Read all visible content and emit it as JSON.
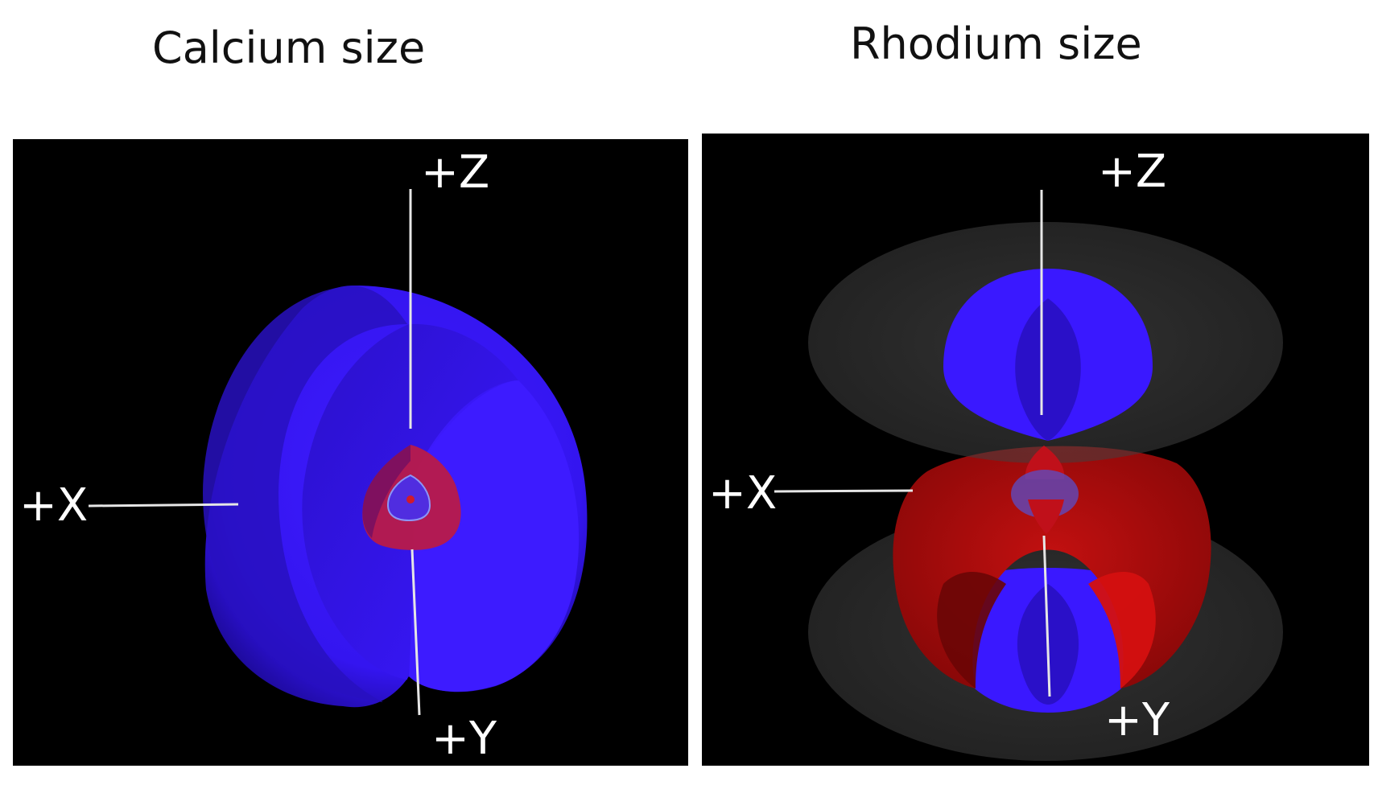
{
  "figure": {
    "left_title": "Calcium size",
    "right_title": "Rhodium size"
  },
  "left_panel": {
    "axes": {
      "z": "+Z",
      "x": "+X",
      "y": "+Y"
    }
  },
  "right_panel": {
    "axes": {
      "z": "+Z",
      "x": "+X",
      "y": "+Y"
    }
  },
  "colors": {
    "background": "#000000",
    "blue_lobe": "#3a18ff",
    "red_lobe": "#d80c0c",
    "nodal_surface": "#6a6a6a",
    "axis_line": "#e6e6e6"
  }
}
